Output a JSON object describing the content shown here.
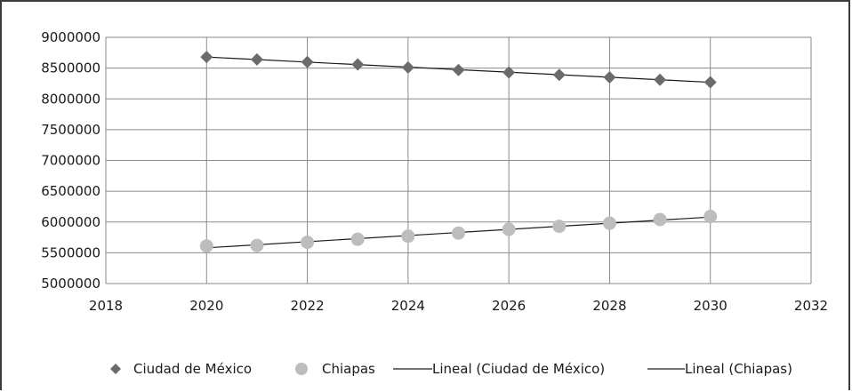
{
  "chart_data": {
    "type": "scatter",
    "title": "",
    "xlabel": "",
    "ylabel": "",
    "xlim": [
      2018,
      2032
    ],
    "ylim": [
      5000000,
      9000000
    ],
    "x_ticks": [
      2018,
      2020,
      2022,
      2024,
      2026,
      2028,
      2030,
      2032
    ],
    "y_ticks": [
      5000000,
      5500000,
      6000000,
      6500000,
      7000000,
      7500000,
      8000000,
      8500000,
      9000000
    ],
    "grid": true,
    "legend_position": "bottom",
    "series": [
      {
        "name": "Ciudad de México",
        "marker": "diamond",
        "color": "#6b6b6b",
        "x": [
          2020,
          2021,
          2022,
          2023,
          2024,
          2025,
          2026,
          2027,
          2028,
          2029,
          2030
        ],
        "y": [
          8680000,
          8640000,
          8600000,
          8560000,
          8510000,
          8470000,
          8430000,
          8390000,
          8350000,
          8310000,
          8270000
        ]
      },
      {
        "name": "Chiapas",
        "marker": "circle",
        "color": "#bdbdbd",
        "x": [
          2020,
          2021,
          2022,
          2023,
          2024,
          2025,
          2026,
          2027,
          2028,
          2029,
          2030
        ],
        "y": [
          5610000,
          5620000,
          5670000,
          5720000,
          5770000,
          5820000,
          5880000,
          5930000,
          5980000,
          6040000,
          6090000
        ]
      }
    ],
    "trendlines": [
      {
        "name": "Lineal (Ciudad de México)",
        "color": "#1a1a1a",
        "x": [
          2020,
          2030
        ],
        "y": [
          8680000,
          8270000
        ]
      },
      {
        "name": "Lineal (Chiapas)",
        "color": "#1a1a1a",
        "x": [
          2020,
          2030
        ],
        "y": [
          5580000,
          6080000
        ]
      }
    ]
  }
}
